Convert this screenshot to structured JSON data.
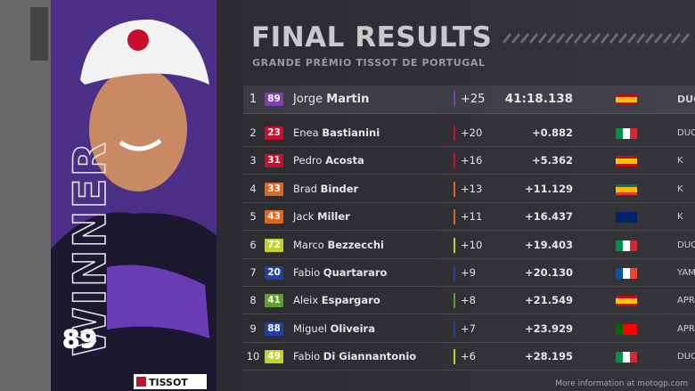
{
  "header": {
    "title": "FINAL RESULTS",
    "subtitle": "GRANDE PRÉMIO TISSOT DE PORTUGAL"
  },
  "winner_label": "WINNER",
  "sponsor": "TISSOT",
  "rider_photo_number": "89",
  "table": {
    "rows": [
      {
        "position": "1",
        "number": "89",
        "first_name": "Jorge",
        "last_name": "Martin",
        "points": "+25",
        "time": "41:18.138",
        "team": "DUCA",
        "color": "#7b3fb0"
      },
      {
        "position": "2",
        "number": "23",
        "first_name": "Enea",
        "last_name": "Bastianini",
        "points": "+20",
        "time": "+0.882",
        "team": "DUC",
        "color": "#c8102e"
      },
      {
        "position": "3",
        "number": "31",
        "first_name": "Pedro",
        "last_name": "Acosta",
        "points": "+16",
        "time": "+5.362",
        "team": "K",
        "color": "#c8102e"
      },
      {
        "position": "4",
        "number": "33",
        "first_name": "Brad",
        "last_name": "Binder",
        "points": "+13",
        "time": "+11.129",
        "team": "K",
        "color": "#e0661c"
      },
      {
        "position": "5",
        "number": "43",
        "first_name": "Jack",
        "last_name": "Miller",
        "points": "+11",
        "time": "+16.437",
        "team": "K",
        "color": "#e0661c"
      },
      {
        "position": "6",
        "number": "72",
        "first_name": "Marco",
        "last_name": "Bezzecchi",
        "points": "+10",
        "time": "+19.403",
        "team": "DUC",
        "color": "#c3d12a"
      },
      {
        "position": "7",
        "number": "20",
        "first_name": "Fabio",
        "last_name": "Quartararo",
        "points": "+9",
        "time": "+20.130",
        "team": "YAMA",
        "color": "#2340a8"
      },
      {
        "position": "8",
        "number": "41",
        "first_name": "Aleix",
        "last_name": "Espargaro",
        "points": "+8",
        "time": "+21.549",
        "team": "APRI",
        "color": "#5e9e2a"
      },
      {
        "position": "9",
        "number": "88",
        "first_name": "Miguel",
        "last_name": "Oliveira",
        "points": "+7",
        "time": "+23.929",
        "team": "APRI",
        "color": "#2340a8"
      },
      {
        "position": "10",
        "number": "49",
        "first_name": "Fabio",
        "last_name": "Di Giannantonio",
        "points": "+6",
        "time": "+28.195",
        "team": "DUC",
        "color": "#c3d12a"
      }
    ]
  },
  "footer": "More information at motogp.com"
}
